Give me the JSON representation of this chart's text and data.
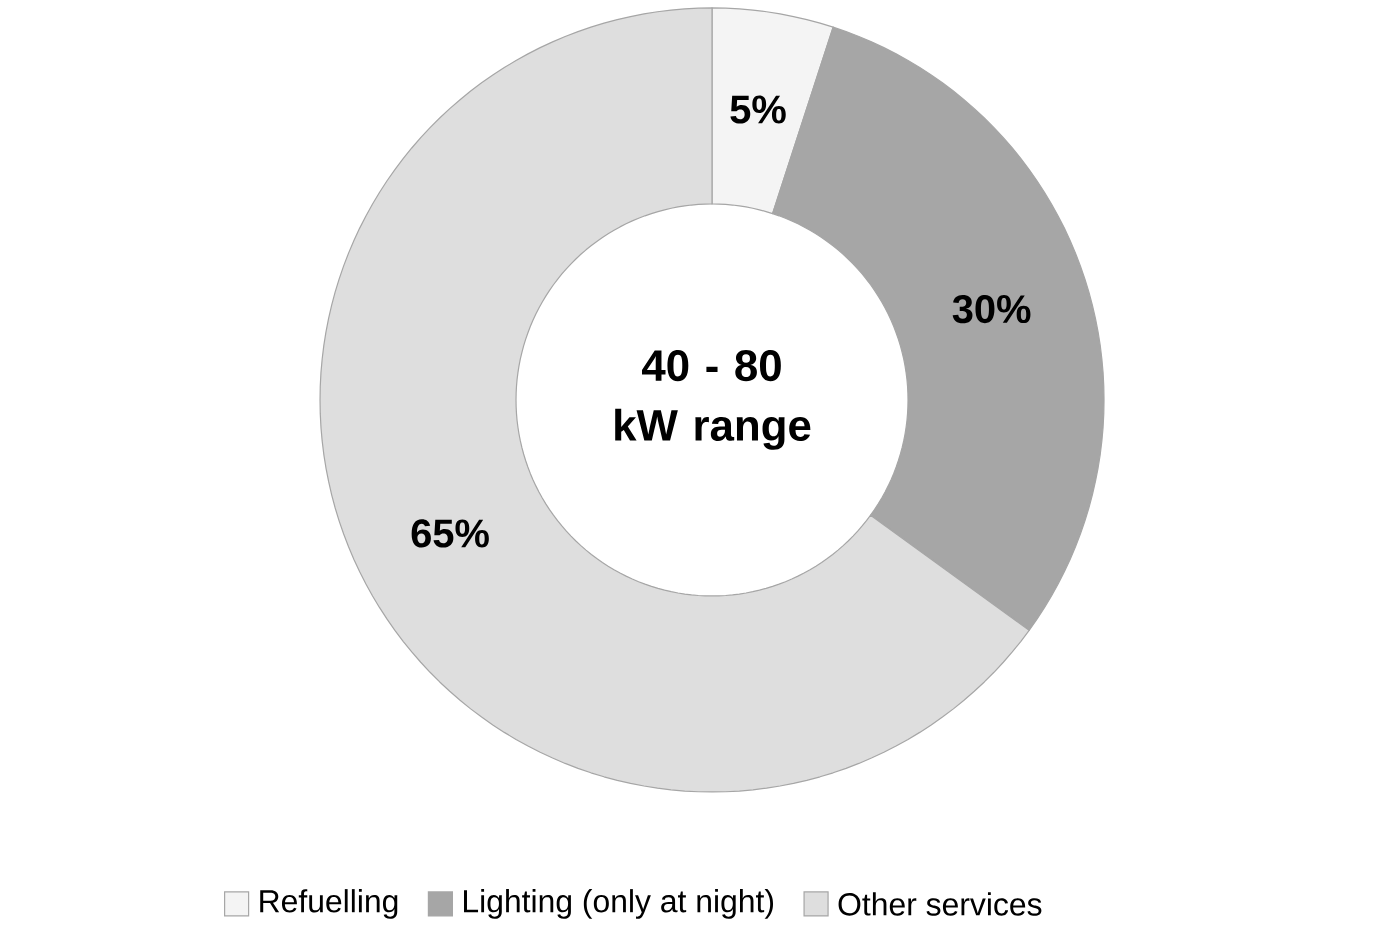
{
  "chart_data": {
    "type": "donut",
    "title": "40 - 80 kW range",
    "categories": [
      "Refuelling",
      "Lighting (only at night)",
      "Other services"
    ],
    "values": [
      5,
      30,
      65
    ],
    "colors": [
      "#f4f4f4",
      "#a6a6a6",
      "#dedede"
    ],
    "value_labels": [
      "5%",
      "30%",
      "65%"
    ],
    "legend": "bottom"
  }
}
